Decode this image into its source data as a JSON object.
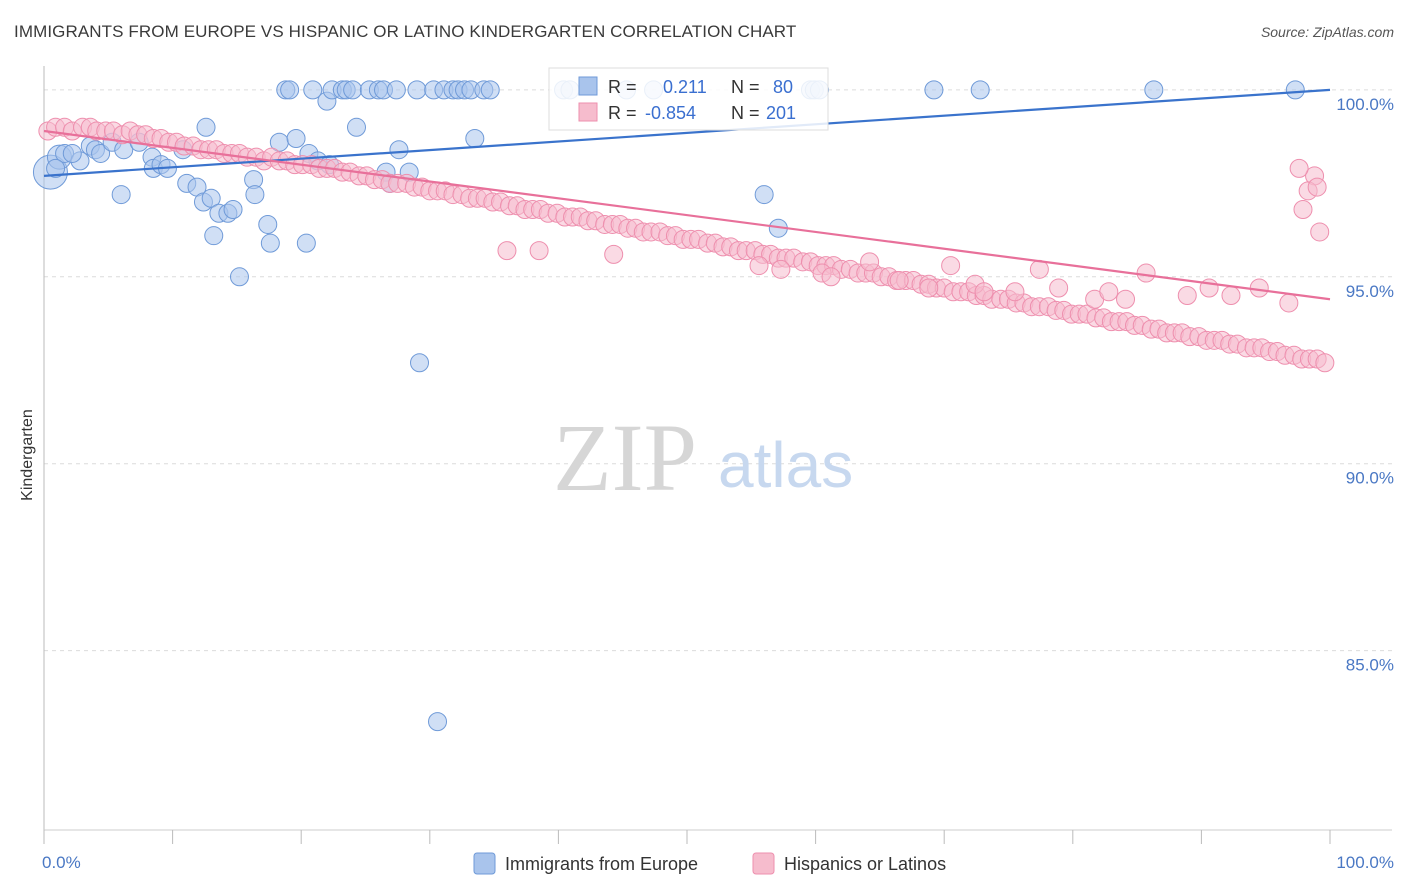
{
  "title": "IMMIGRANTS FROM EUROPE VS HISPANIC OR LATINO KINDERGARTEN CORRELATION CHART",
  "source": "Source: ZipAtlas.com",
  "watermark": {
    "part1": "ZIP",
    "part2": "atlas"
  },
  "colors": {
    "blue_fill": "#a9c4ec",
    "blue_stroke": "#6f9ad8",
    "blue_line": "#3a73cc",
    "pink_fill": "#f6bccd",
    "pink_stroke": "#ee8fae",
    "pink_line": "#e8709a",
    "grid": "#dcdcdc",
    "tick_text": "#4a78c4"
  },
  "stats": {
    "r_label": "R =",
    "n_label": "N =",
    "blue": {
      "r": "0.211",
      "n": "80"
    },
    "pink": {
      "r": "-0.854",
      "n": "201"
    }
  },
  "chart_data": {
    "type": "scatter",
    "title": "IMMIGRANTS FROM EUROPE VS HISPANIC OR LATINO KINDERGARTEN CORRELATION CHART",
    "xlabel": "",
    "ylabel": "Kindergarten",
    "xlim": [
      0,
      100
    ],
    "ylim": [
      80.2,
      100.8
    ],
    "x_tick_labels": [
      "0.0%",
      "100.0%"
    ],
    "y_ticks": [
      85,
      90,
      95,
      100
    ],
    "y_tick_labels": [
      "85.0%",
      "90.0%",
      "95.0%",
      "100.0%"
    ],
    "grid": true,
    "legend_position": "bottom-center",
    "series": [
      {
        "name": "Immigrants from Europe",
        "trend": {
          "x": [
            0,
            100
          ],
          "y": [
            97.7,
            100.0
          ]
        },
        "points": [
          [
            0.5,
            97.8
          ],
          [
            1.2,
            98.2
          ],
          [
            1.6,
            98.3
          ],
          [
            2.8,
            98.1
          ],
          [
            3.6,
            98.5
          ],
          [
            2.2,
            98.3
          ],
          [
            4.0,
            98.4
          ],
          [
            4.4,
            98.3
          ],
          [
            5.3,
            98.6
          ],
          [
            6.2,
            98.4
          ],
          [
            7.4,
            98.6
          ],
          [
            8.4,
            98.2
          ],
          [
            8.5,
            97.9
          ],
          [
            9.1,
            98.0
          ],
          [
            9.6,
            97.9
          ],
          [
            10.8,
            98.4
          ],
          [
            11.1,
            97.5
          ],
          [
            11.9,
            97.4
          ],
          [
            12.4,
            97.0
          ],
          [
            13.2,
            96.1
          ],
          [
            13.0,
            97.1
          ],
          [
            12.6,
            99.0
          ],
          [
            13.6,
            96.7
          ],
          [
            14.3,
            96.7
          ],
          [
            14.7,
            96.8
          ],
          [
            15.2,
            95.0
          ],
          [
            16.3,
            97.6
          ],
          [
            16.4,
            97.2
          ],
          [
            17.4,
            96.4
          ],
          [
            17.6,
            95.9
          ],
          [
            18.3,
            98.6
          ],
          [
            19.6,
            98.7
          ],
          [
            20.4,
            95.9
          ],
          [
            20.6,
            98.3
          ],
          [
            21.3,
            98.1
          ],
          [
            22.2,
            98.0
          ],
          [
            24.3,
            99.0
          ],
          [
            26.6,
            97.8
          ],
          [
            26.9,
            97.5
          ],
          [
            27.6,
            98.4
          ],
          [
            28.4,
            97.8
          ],
          [
            29.2,
            92.7
          ],
          [
            30.6,
            83.1
          ],
          [
            33.5,
            98.7
          ],
          [
            18.8,
            100.0
          ],
          [
            19.1,
            100.0
          ],
          [
            20.9,
            100.0
          ],
          [
            22.0,
            99.7
          ],
          [
            22.4,
            100.0
          ],
          [
            23.2,
            100.0
          ],
          [
            23.5,
            100.0
          ],
          [
            24.0,
            100.0
          ],
          [
            25.3,
            100.0
          ],
          [
            26.0,
            100.0
          ],
          [
            26.4,
            100.0
          ],
          [
            27.4,
            100.0
          ],
          [
            29.0,
            100.0
          ],
          [
            30.3,
            100.0
          ],
          [
            31.1,
            100.0
          ],
          [
            31.8,
            100.0
          ],
          [
            32.2,
            100.0
          ],
          [
            32.7,
            100.0
          ],
          [
            33.2,
            100.0
          ],
          [
            34.2,
            100.0
          ],
          [
            34.7,
            100.0
          ],
          [
            40.4,
            100.0
          ],
          [
            40.9,
            100.0
          ],
          [
            45.3,
            100.0
          ],
          [
            47.4,
            100.0
          ],
          [
            59.6,
            100.0
          ],
          [
            59.9,
            100.0
          ],
          [
            60.3,
            100.0
          ],
          [
            56.0,
            97.2
          ],
          [
            57.1,
            96.3
          ],
          [
            69.2,
            100.0
          ],
          [
            72.8,
            100.0
          ],
          [
            86.3,
            100.0
          ],
          [
            97.3,
            100.0
          ],
          [
            0.9,
            97.9
          ],
          [
            6.0,
            97.2
          ]
        ]
      },
      {
        "name": "Hispanics or Latinos",
        "trend": {
          "x": [
            0,
            100
          ],
          "y": [
            98.9,
            94.4
          ]
        },
        "points": [
          [
            0.3,
            98.9
          ],
          [
            0.9,
            99.0
          ],
          [
            1.6,
            99.0
          ],
          [
            2.2,
            98.9
          ],
          [
            3.0,
            99.0
          ],
          [
            3.6,
            99.0
          ],
          [
            4.1,
            98.9
          ],
          [
            4.8,
            98.9
          ],
          [
            5.4,
            98.9
          ],
          [
            6.1,
            98.8
          ],
          [
            6.7,
            98.9
          ],
          [
            7.3,
            98.8
          ],
          [
            7.9,
            98.8
          ],
          [
            8.5,
            98.7
          ],
          [
            9.1,
            98.7
          ],
          [
            9.7,
            98.6
          ],
          [
            10.3,
            98.6
          ],
          [
            10.9,
            98.5
          ],
          [
            11.6,
            98.5
          ],
          [
            12.2,
            98.4
          ],
          [
            12.8,
            98.4
          ],
          [
            13.4,
            98.4
          ],
          [
            14.0,
            98.3
          ],
          [
            14.6,
            98.3
          ],
          [
            15.2,
            98.3
          ],
          [
            15.8,
            98.2
          ],
          [
            16.5,
            98.2
          ],
          [
            17.1,
            98.1
          ],
          [
            17.7,
            98.2
          ],
          [
            18.3,
            98.1
          ],
          [
            18.9,
            98.1
          ],
          [
            19.5,
            98.0
          ],
          [
            20.1,
            98.0
          ],
          [
            20.8,
            98.0
          ],
          [
            21.4,
            97.9
          ],
          [
            22.0,
            97.9
          ],
          [
            22.6,
            97.9
          ],
          [
            23.2,
            97.8
          ],
          [
            23.8,
            97.8
          ],
          [
            24.5,
            97.7
          ],
          [
            25.1,
            97.7
          ],
          [
            25.7,
            97.6
          ],
          [
            26.3,
            97.6
          ],
          [
            26.9,
            97.5
          ],
          [
            27.5,
            97.5
          ],
          [
            28.2,
            97.5
          ],
          [
            28.8,
            97.4
          ],
          [
            29.4,
            97.4
          ],
          [
            30.0,
            97.3
          ],
          [
            30.6,
            97.3
          ],
          [
            31.2,
            97.3
          ],
          [
            31.8,
            97.2
          ],
          [
            32.5,
            97.2
          ],
          [
            33.1,
            97.1
          ],
          [
            33.7,
            97.1
          ],
          [
            34.3,
            97.1
          ],
          [
            34.9,
            97.0
          ],
          [
            35.5,
            97.0
          ],
          [
            36.2,
            96.9
          ],
          [
            36.8,
            96.9
          ],
          [
            37.4,
            96.8
          ],
          [
            38.0,
            96.8
          ],
          [
            38.6,
            96.8
          ],
          [
            39.2,
            96.7
          ],
          [
            39.9,
            96.7
          ],
          [
            40.5,
            96.6
          ],
          [
            41.1,
            96.6
          ],
          [
            41.7,
            96.6
          ],
          [
            42.3,
            96.5
          ],
          [
            42.9,
            96.5
          ],
          [
            43.6,
            96.4
          ],
          [
            44.2,
            96.4
          ],
          [
            44.8,
            96.4
          ],
          [
            45.4,
            96.3
          ],
          [
            46.0,
            96.3
          ],
          [
            46.6,
            96.2
          ],
          [
            47.2,
            96.2
          ],
          [
            47.9,
            96.2
          ],
          [
            48.5,
            96.1
          ],
          [
            49.1,
            96.1
          ],
          [
            49.7,
            96.0
          ],
          [
            50.3,
            96.0
          ],
          [
            50.9,
            96.0
          ],
          [
            51.6,
            95.9
          ],
          [
            52.2,
            95.9
          ],
          [
            52.8,
            95.8
          ],
          [
            53.4,
            95.8
          ],
          [
            54.0,
            95.7
          ],
          [
            54.6,
            95.7
          ],
          [
            55.3,
            95.7
          ],
          [
            55.9,
            95.6
          ],
          [
            56.5,
            95.6
          ],
          [
            57.1,
            95.5
          ],
          [
            57.7,
            95.5
          ],
          [
            58.3,
            95.5
          ],
          [
            59.0,
            95.4
          ],
          [
            59.6,
            95.4
          ],
          [
            60.2,
            95.3
          ],
          [
            60.8,
            95.3
          ],
          [
            61.4,
            95.3
          ],
          [
            62.0,
            95.2
          ],
          [
            62.7,
            95.2
          ],
          [
            63.3,
            95.1
          ],
          [
            63.9,
            95.1
          ],
          [
            64.5,
            95.1
          ],
          [
            65.1,
            95.0
          ],
          [
            65.7,
            95.0
          ],
          [
            66.3,
            94.9
          ],
          [
            67.0,
            94.9
          ],
          [
            67.6,
            94.9
          ],
          [
            68.2,
            94.8
          ],
          [
            68.8,
            94.8
          ],
          [
            69.4,
            94.7
          ],
          [
            70.0,
            94.7
          ],
          [
            70.7,
            94.6
          ],
          [
            71.3,
            94.6
          ],
          [
            71.9,
            94.6
          ],
          [
            72.5,
            94.5
          ],
          [
            73.1,
            94.5
          ],
          [
            73.7,
            94.4
          ],
          [
            74.4,
            94.4
          ],
          [
            75.0,
            94.4
          ],
          [
            75.6,
            94.3
          ],
          [
            76.2,
            94.3
          ],
          [
            76.8,
            94.2
          ],
          [
            77.4,
            94.2
          ],
          [
            78.1,
            94.2
          ],
          [
            78.7,
            94.1
          ],
          [
            79.3,
            94.1
          ],
          [
            79.9,
            94.0
          ],
          [
            80.5,
            94.0
          ],
          [
            81.1,
            94.0
          ],
          [
            81.8,
            93.9
          ],
          [
            82.4,
            93.9
          ],
          [
            83.0,
            93.8
          ],
          [
            83.6,
            93.8
          ],
          [
            84.2,
            93.8
          ],
          [
            84.8,
            93.7
          ],
          [
            85.4,
            93.7
          ],
          [
            86.1,
            93.6
          ],
          [
            86.7,
            93.6
          ],
          [
            87.3,
            93.5
          ],
          [
            87.9,
            93.5
          ],
          [
            88.5,
            93.5
          ],
          [
            89.1,
            93.4
          ],
          [
            89.8,
            93.4
          ],
          [
            90.4,
            93.3
          ],
          [
            91.0,
            93.3
          ],
          [
            91.6,
            93.3
          ],
          [
            92.2,
            93.2
          ],
          [
            92.8,
            93.2
          ],
          [
            93.5,
            93.1
          ],
          [
            94.1,
            93.1
          ],
          [
            94.7,
            93.1
          ],
          [
            95.3,
            93.0
          ],
          [
            95.9,
            93.0
          ],
          [
            96.5,
            92.9
          ],
          [
            97.2,
            92.9
          ],
          [
            97.8,
            92.8
          ],
          [
            98.4,
            92.8
          ],
          [
            99.0,
            92.8
          ],
          [
            99.6,
            92.7
          ],
          [
            98.8,
            97.7
          ],
          [
            98.3,
            97.3
          ],
          [
            97.9,
            96.8
          ],
          [
            99.2,
            96.2
          ],
          [
            97.6,
            97.9
          ],
          [
            99.0,
            97.4
          ],
          [
            36.0,
            95.7
          ],
          [
            38.5,
            95.7
          ],
          [
            44.3,
            95.6
          ],
          [
            55.6,
            95.3
          ],
          [
            57.3,
            95.2
          ],
          [
            60.5,
            95.1
          ],
          [
            61.2,
            95.0
          ],
          [
            66.5,
            94.9
          ],
          [
            68.8,
            94.7
          ],
          [
            72.4,
            94.8
          ],
          [
            73.1,
            94.6
          ],
          [
            75.5,
            94.6
          ],
          [
            78.9,
            94.7
          ],
          [
            81.7,
            94.4
          ],
          [
            82.8,
            94.6
          ],
          [
            84.1,
            94.4
          ],
          [
            88.9,
            94.5
          ],
          [
            90.6,
            94.7
          ],
          [
            92.3,
            94.5
          ],
          [
            94.5,
            94.7
          ],
          [
            96.8,
            94.3
          ],
          [
            64.2,
            95.4
          ],
          [
            70.5,
            95.3
          ],
          [
            77.4,
            95.2
          ],
          [
            85.7,
            95.1
          ]
        ]
      }
    ]
  },
  "legend": {
    "blue_label": "Immigrants from Europe",
    "pink_label": "Hispanics or Latinos"
  }
}
